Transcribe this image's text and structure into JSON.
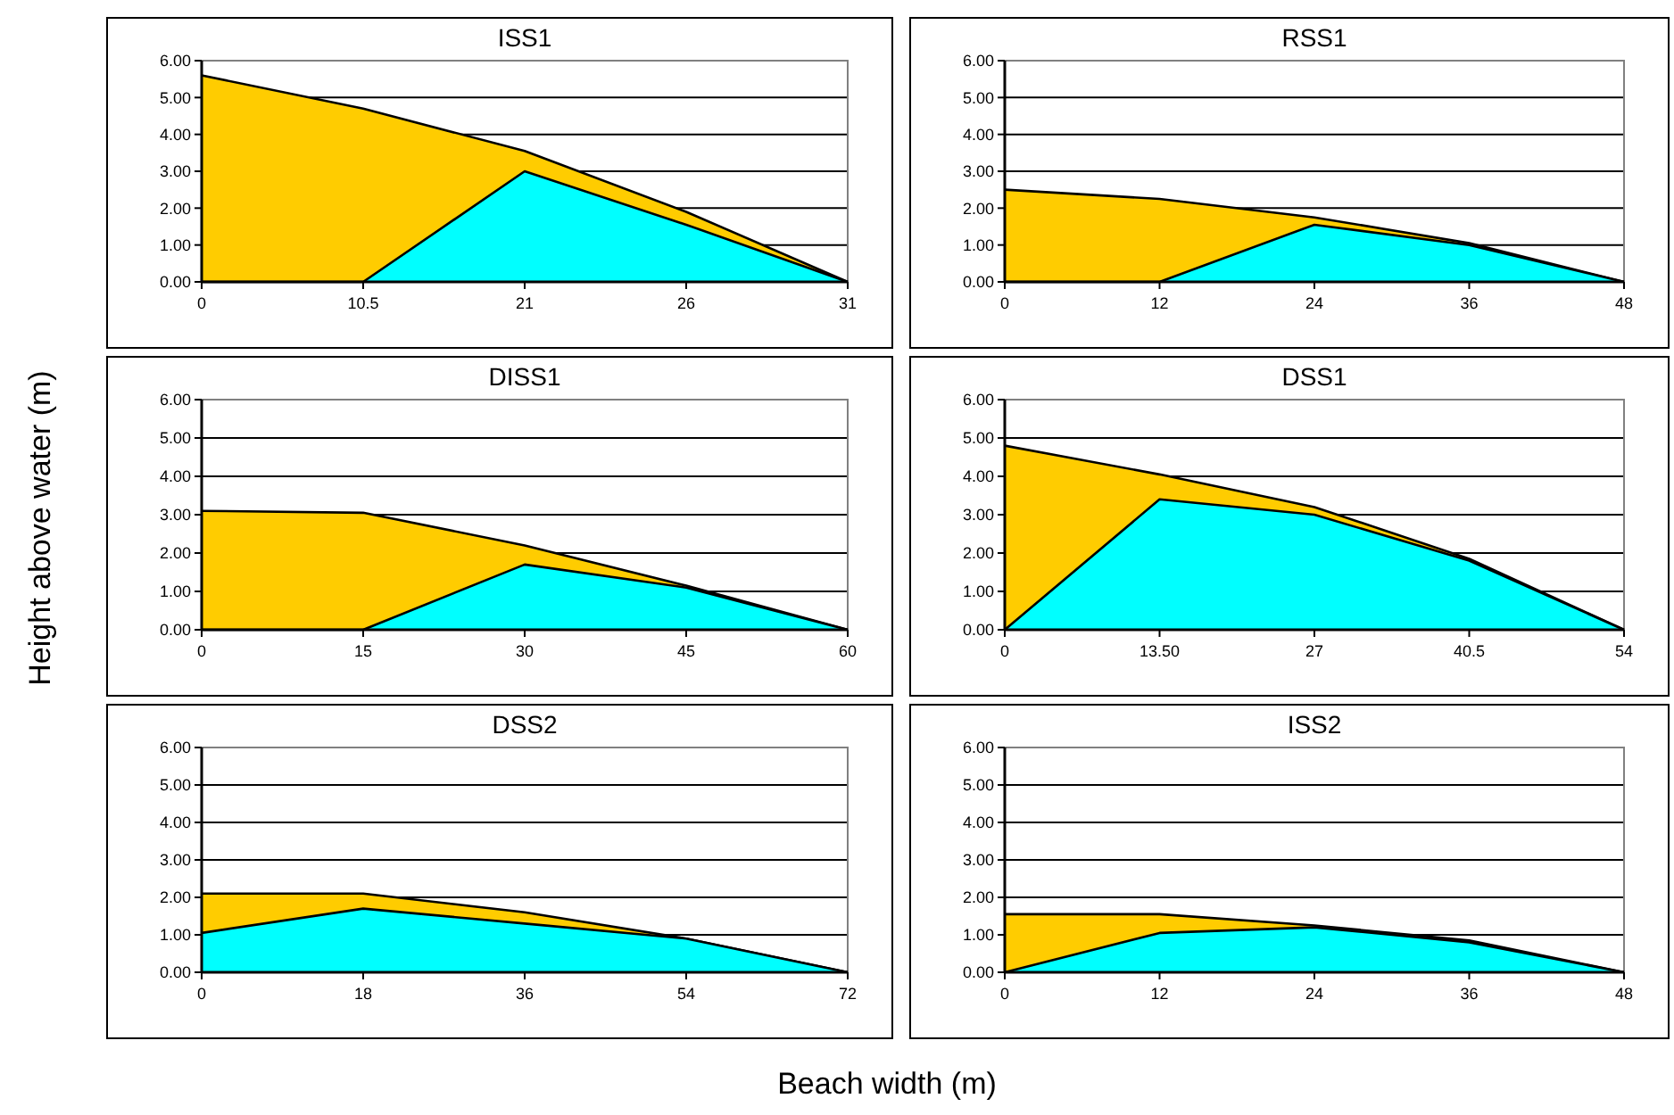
{
  "chart_data": [
    {
      "type": "area",
      "title": "ISS1",
      "ylabel": "Height above water (m)",
      "categories": [
        "0",
        "10.5",
        "21",
        "26",
        "31"
      ],
      "ylim": [
        0,
        6
      ],
      "yticks": [
        {
          "value": 0,
          "label": "0.00"
        },
        {
          "value": 1,
          "label": "1.00"
        },
        {
          "value": 2,
          "label": "2.00"
        },
        {
          "value": 3,
          "label": "3.00"
        },
        {
          "value": 4,
          "label": "4.00"
        },
        {
          "value": 5,
          "label": "5.00"
        },
        {
          "value": 6,
          "label": "6.00"
        }
      ],
      "grid": "y",
      "series": [
        {
          "color": "#ffcc00",
          "values": [
            5.6,
            4.7,
            3.55,
            1.9,
            0
          ]
        },
        {
          "color": "#00ffff",
          "values": [
            0,
            0,
            3.0,
            1.55,
            0
          ]
        }
      ]
    },
    {
      "type": "area",
      "title": "RSS1",
      "categories": [
        "0",
        "12",
        "24",
        "36",
        "48"
      ],
      "ylim": [
        0,
        6
      ],
      "yticks": [
        {
          "value": 0,
          "label": "0.00"
        },
        {
          "value": 1,
          "label": "1.00"
        },
        {
          "value": 2,
          "label": "2.00"
        },
        {
          "value": 3,
          "label": "3.00"
        },
        {
          "value": 4,
          "label": "4.00"
        },
        {
          "value": 5,
          "label": "5.00"
        },
        {
          "value": 6,
          "label": "6.00"
        }
      ],
      "grid": "y",
      "series": [
        {
          "color": "#ffcc00",
          "values": [
            2.5,
            2.25,
            1.75,
            1.05,
            0
          ]
        },
        {
          "color": "#00ffff",
          "values": [
            0,
            0,
            1.55,
            1.0,
            0
          ]
        }
      ]
    },
    {
      "type": "area",
      "title": "DISS1",
      "categories": [
        "0",
        "15",
        "30",
        "45",
        "60"
      ],
      "ylim": [
        0,
        6
      ],
      "yticks": [
        {
          "value": 0,
          "label": "0.00"
        },
        {
          "value": 1,
          "label": "1.00"
        },
        {
          "value": 2,
          "label": "2.00"
        },
        {
          "value": 3,
          "label": "3.00"
        },
        {
          "value": 4,
          "label": "4.00"
        },
        {
          "value": 5,
          "label": "5.00"
        },
        {
          "value": 6,
          "label": "6.00"
        }
      ],
      "grid": "y",
      "series": [
        {
          "color": "#ffcc00",
          "values": [
            3.1,
            3.05,
            2.2,
            1.15,
            0
          ]
        },
        {
          "color": "#00ffff",
          "values": [
            0,
            0,
            1.7,
            1.1,
            0
          ]
        }
      ]
    },
    {
      "type": "area",
      "title": "DSS1",
      "categories": [
        "0",
        "13.50",
        "27",
        "40.5",
        "54"
      ],
      "ylim": [
        0,
        6
      ],
      "yticks": [
        {
          "value": 0,
          "label": "0.00"
        },
        {
          "value": 1,
          "label": "1.00"
        },
        {
          "value": 2,
          "label": "2.00"
        },
        {
          "value": 3,
          "label": "3.00"
        },
        {
          "value": 4,
          "label": "4.00"
        },
        {
          "value": 5,
          "label": "5.00"
        },
        {
          "value": 6,
          "label": "6.00"
        }
      ],
      "grid": "y",
      "series": [
        {
          "color": "#ffcc00",
          "values": [
            4.8,
            4.05,
            3.2,
            1.85,
            0
          ]
        },
        {
          "color": "#00ffff",
          "values": [
            0,
            3.4,
            3.0,
            1.8,
            0
          ]
        }
      ]
    },
    {
      "type": "area",
      "title": "DSS2",
      "xlabel": "Beach width (m)",
      "categories": [
        "0",
        "18",
        "36",
        "54",
        "72"
      ],
      "ylim": [
        0,
        6
      ],
      "yticks": [
        {
          "value": 0,
          "label": "0.00"
        },
        {
          "value": 1,
          "label": "1.00"
        },
        {
          "value": 2,
          "label": "2.00"
        },
        {
          "value": 3,
          "label": "3.00"
        },
        {
          "value": 4,
          "label": "4.00"
        },
        {
          "value": 5,
          "label": "5.00"
        },
        {
          "value": 6,
          "label": "6.00"
        }
      ],
      "grid": "y",
      "series": [
        {
          "color": "#ffcc00",
          "values": [
            2.1,
            2.1,
            1.6,
            0.9,
            0
          ]
        },
        {
          "color": "#00ffff",
          "values": [
            1.05,
            1.7,
            1.3,
            0.9,
            0
          ]
        }
      ]
    },
    {
      "type": "area",
      "title": "ISS2",
      "categories": [
        "0",
        "12",
        "24",
        "36",
        "48"
      ],
      "ylim": [
        0,
        6
      ],
      "yticks": [
        {
          "value": 0,
          "label": "0.00"
        },
        {
          "value": 1,
          "label": "1.00"
        },
        {
          "value": 2,
          "label": "2.00"
        },
        {
          "value": 3,
          "label": "3.00"
        },
        {
          "value": 4,
          "label": "4.00"
        },
        {
          "value": 5,
          "label": "5.00"
        },
        {
          "value": 6,
          "label": "6.00"
        }
      ],
      "grid": "y",
      "series": [
        {
          "color": "#ffcc00",
          "values": [
            1.55,
            1.55,
            1.25,
            0.85,
            0
          ]
        },
        {
          "color": "#00ffff",
          "values": [
            0,
            1.05,
            1.2,
            0.8,
            0
          ]
        }
      ]
    }
  ]
}
